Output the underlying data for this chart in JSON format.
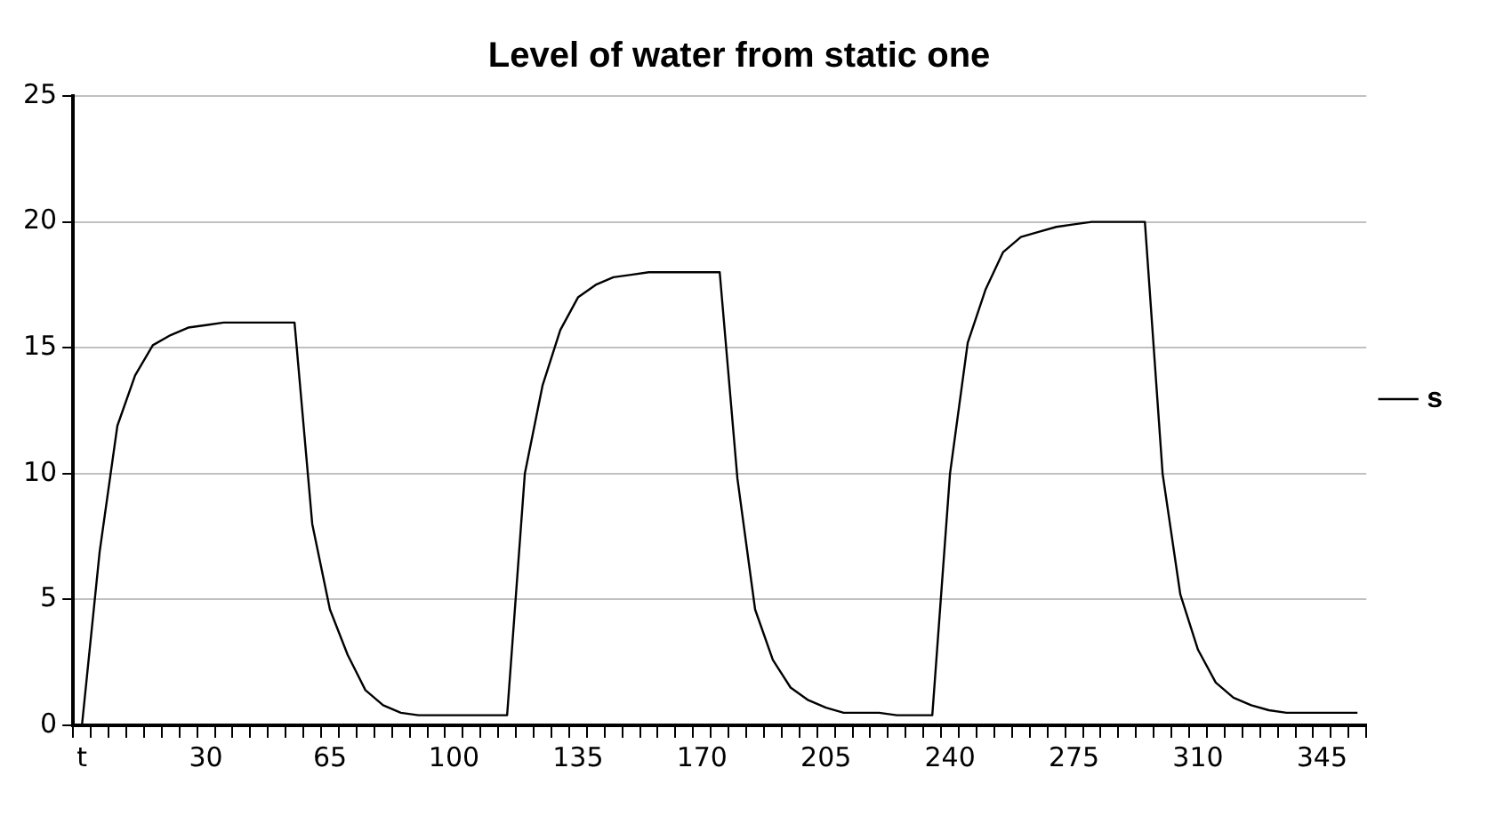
{
  "chart_data": {
    "type": "line",
    "title": "Level of water from static one",
    "categories": [
      "t",
      null,
      null,
      null,
      null,
      null,
      null,
      "30",
      null,
      null,
      null,
      null,
      null,
      null,
      "65",
      null,
      null,
      null,
      null,
      null,
      null,
      "100",
      null,
      null,
      null,
      null,
      null,
      null,
      "135",
      null,
      null,
      null,
      null,
      null,
      null,
      "170",
      null,
      null,
      null,
      null,
      null,
      null,
      "205",
      null,
      null,
      null,
      null,
      null,
      null,
      "240",
      null,
      null,
      null,
      null,
      null,
      null,
      "275",
      null,
      null,
      null,
      null,
      null,
      null,
      "310",
      null,
      null,
      null,
      null,
      null,
      null,
      "345",
      null,
      null
    ],
    "series": [
      {
        "name": "s",
        "color": "#000000",
        "values": [
          0,
          6.9,
          11.9,
          13.9,
          15.1,
          15.5,
          15.8,
          15.9,
          16,
          16,
          16,
          16,
          16,
          8,
          4.6,
          2.8,
          1.4,
          0.8,
          0.5,
          0.4,
          0.4,
          0.4,
          0.4,
          0.4,
          0.4,
          10,
          13.5,
          15.7,
          17,
          17.5,
          17.8,
          17.9,
          18,
          18,
          18,
          18,
          18,
          9.8,
          4.6,
          2.6,
          1.5,
          1,
          0.7,
          0.5,
          0.5,
          0.5,
          0.4,
          0.4,
          0.4,
          10,
          15.2,
          17.3,
          18.8,
          19.4,
          19.6,
          19.8,
          19.9,
          20,
          20,
          20,
          20,
          10,
          5.2,
          3,
          1.7,
          1.1,
          0.8,
          0.6,
          0.5,
          0.5,
          0.5,
          0.5,
          0.5
        ]
      }
    ],
    "ylim": [
      0,
      25
    ],
    "yticks": [
      0,
      5,
      10,
      15,
      20,
      25
    ],
    "grid": "y",
    "legend": "right",
    "marker": "none",
    "line_style": "solid"
  }
}
